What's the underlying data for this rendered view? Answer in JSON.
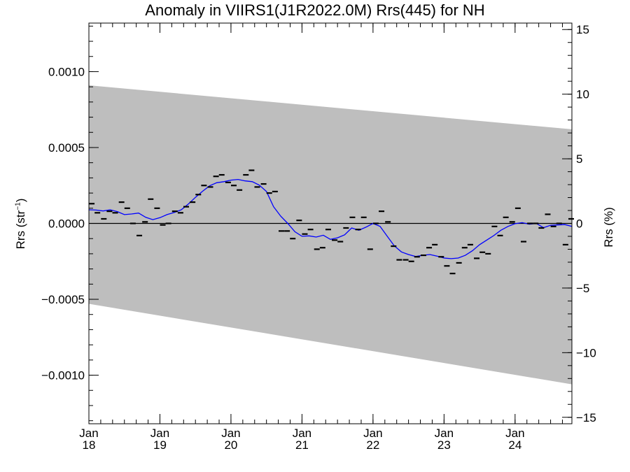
{
  "chart_data": {
    "type": "line",
    "title": "Anomaly in VIIRS1(J1R2022.0M) Rrs(445) for NH",
    "ylabel_left": {
      "main": "Rrs (str",
      "sup": "−1",
      "close": ")"
    },
    "ylabel_right": "Rrs (%)",
    "ylim": [
      -0.00132,
      0.00132
    ],
    "y2lim": [
      -15.5,
      15.5
    ],
    "xlim": [
      2018.0,
      2024.8
    ],
    "left_ticks": [
      {
        "value": 0.001,
        "label": "0.0010"
      },
      {
        "value": 0.0005,
        "label": "0.0005"
      },
      {
        "value": 0.0,
        "label": "0.0000"
      },
      {
        "value": -0.0005,
        "label": "−0.0005"
      },
      {
        "value": -0.001,
        "label": "−0.0010"
      }
    ],
    "right_ticks": [
      {
        "value": 15,
        "label": "15"
      },
      {
        "value": 10,
        "label": "10"
      },
      {
        "value": 5,
        "label": "5"
      },
      {
        "value": 0,
        "label": "0"
      },
      {
        "value": -5,
        "label": "−5"
      },
      {
        "value": -10,
        "label": "−10"
      },
      {
        "value": -15,
        "label": "−15"
      }
    ],
    "x_ticks": [
      {
        "value": 2018,
        "month": "Jan",
        "year": "18"
      },
      {
        "value": 2019,
        "month": "Jan",
        "year": "19"
      },
      {
        "value": 2020,
        "month": "Jan",
        "year": "20"
      },
      {
        "value": 2021,
        "month": "Jan",
        "year": "21"
      },
      {
        "value": 2022,
        "month": "Jan",
        "year": "22"
      },
      {
        "value": 2023,
        "month": "Jan",
        "year": "23"
      },
      {
        "value": 2024,
        "month": "Jan",
        "year": "24"
      }
    ],
    "band": {
      "upper": [
        [
          2018.0,
          0.00091
        ],
        [
          2024.8,
          0.00062
        ]
      ],
      "lower": [
        [
          2018.0,
          -0.00053
        ],
        [
          2024.8,
          -0.00106
        ]
      ],
      "color": "#bebebe"
    },
    "zero_line": 0.0,
    "monthly_series": {
      "color": "#000000",
      "points": [
        [
          2018.04,
          0.00013
        ],
        [
          2018.12,
          7e-05
        ],
        [
          2018.21,
          3e-05
        ],
        [
          2018.29,
          8e-05
        ],
        [
          2018.37,
          7e-05
        ],
        [
          2018.46,
          0.00014
        ],
        [
          2018.54,
          0.0001
        ],
        [
          2018.62,
          0.0
        ],
        [
          2018.71,
          -8e-05
        ],
        [
          2018.79,
          1e-05
        ],
        [
          2018.87,
          0.00016
        ],
        [
          2018.96,
          0.0001
        ],
        [
          2019.04,
          -1e-05
        ],
        [
          2019.12,
          0.0
        ],
        [
          2019.21,
          8e-05
        ],
        [
          2019.29,
          7e-05
        ],
        [
          2019.37,
          0.00011
        ],
        [
          2019.46,
          0.00014
        ],
        [
          2019.54,
          0.00019
        ],
        [
          2019.62,
          0.00025
        ],
        [
          2019.71,
          0.00024
        ],
        [
          2019.79,
          0.00031
        ],
        [
          2019.87,
          0.00032
        ],
        [
          2019.96,
          0.00027
        ],
        [
          2020.04,
          0.00025
        ],
        [
          2020.12,
          0.00022
        ],
        [
          2020.21,
          0.00032
        ],
        [
          2020.29,
          0.00035
        ],
        [
          2020.37,
          0.00024
        ],
        [
          2020.46,
          0.00026
        ],
        [
          2020.54,
          0.0002
        ],
        [
          2020.62,
          0.00021
        ],
        [
          2020.71,
          -5e-05
        ],
        [
          2020.79,
          -5e-05
        ],
        [
          2020.87,
          -0.0001
        ],
        [
          2020.96,
          2e-05
        ],
        [
          2021.04,
          -7e-05
        ],
        [
          2021.12,
          -4e-05
        ],
        [
          2021.21,
          -0.00017
        ],
        [
          2021.29,
          -0.00016
        ],
        [
          2021.37,
          -4e-05
        ],
        [
          2021.46,
          -0.00011
        ],
        [
          2021.54,
          -0.00012
        ],
        [
          2021.62,
          -3e-05
        ],
        [
          2021.71,
          4e-05
        ],
        [
          2021.79,
          -4e-05
        ],
        [
          2021.87,
          4e-05
        ],
        [
          2021.96,
          -0.00017
        ],
        [
          2022.04,
          0.0
        ],
        [
          2022.12,
          8e-05
        ],
        [
          2022.21,
          1e-05
        ],
        [
          2022.29,
          -0.00015
        ],
        [
          2022.37,
          -0.00024
        ],
        [
          2022.46,
          -0.00024
        ],
        [
          2022.54,
          -0.00025
        ],
        [
          2022.62,
          -0.00022
        ],
        [
          2022.71,
          -0.00021
        ],
        [
          2022.79,
          -0.00016
        ],
        [
          2022.87,
          -0.00014
        ],
        [
          2022.96,
          -0.00022
        ],
        [
          2023.04,
          -0.00028
        ],
        [
          2023.12,
          -0.00033
        ],
        [
          2023.21,
          -0.00026
        ],
        [
          2023.29,
          -0.00016
        ],
        [
          2023.37,
          -0.00014
        ],
        [
          2023.46,
          -0.00023
        ],
        [
          2023.54,
          -0.00019
        ],
        [
          2023.62,
          -0.0002
        ],
        [
          2023.71,
          -2e-05
        ],
        [
          2023.79,
          -8e-05
        ],
        [
          2023.87,
          4e-05
        ],
        [
          2023.96,
          1e-05
        ],
        [
          2024.04,
          0.0001
        ],
        [
          2024.12,
          -0.00012
        ],
        [
          2024.21,
          0.0
        ],
        [
          2024.29,
          0.0
        ],
        [
          2024.37,
          -3e-05
        ],
        [
          2024.46,
          6e-05
        ],
        [
          2024.54,
          -2e-05
        ],
        [
          2024.62,
          0.0
        ],
        [
          2024.71,
          -0.00014
        ],
        [
          2024.79,
          3e-05
        ]
      ]
    },
    "smoothed_series": {
      "color": "#0000ff",
      "points": [
        [
          2018.0,
          9e-05
        ],
        [
          2018.1,
          8.8e-05
        ],
        [
          2018.2,
          8.2e-05
        ],
        [
          2018.3,
          9e-05
        ],
        [
          2018.4,
          7.8e-05
        ],
        [
          2018.5,
          5.8e-05
        ],
        [
          2018.6,
          6.2e-05
        ],
        [
          2018.7,
          6.8e-05
        ],
        [
          2018.8,
          4e-05
        ],
        [
          2018.9,
          2.5e-05
        ],
        [
          2019.0,
          3.8e-05
        ],
        [
          2019.1,
          5.8e-05
        ],
        [
          2019.2,
          7.2e-05
        ],
        [
          2019.3,
          9e-05
        ],
        [
          2019.4,
          0.000128
        ],
        [
          2019.5,
          0.000172
        ],
        [
          2019.6,
          0.000212
        ],
        [
          2019.7,
          0.000248
        ],
        [
          2019.8,
          0.000268
        ],
        [
          2019.9,
          0.000275
        ],
        [
          2020.0,
          0.000285
        ],
        [
          2020.1,
          0.00029
        ],
        [
          2020.2,
          0.00028
        ],
        [
          2020.3,
          0.000275
        ],
        [
          2020.4,
          0.000252
        ],
        [
          2020.5,
          0.00021
        ],
        [
          2020.6,
          0.00011
        ],
        [
          2020.7,
          4.8e-05
        ],
        [
          2020.8,
          0.0
        ],
        [
          2020.9,
          -5.5e-05
        ],
        [
          2021.0,
          -8.5e-05
        ],
        [
          2021.1,
          -8.2e-05
        ],
        [
          2021.2,
          -9e-05
        ],
        [
          2021.3,
          -7.8e-05
        ],
        [
          2021.4,
          -0.000105
        ],
        [
          2021.5,
          -9.5e-05
        ],
        [
          2021.6,
          -7.5e-05
        ],
        [
          2021.7,
          -3e-05
        ],
        [
          2021.8,
          -4.5e-05
        ],
        [
          2021.9,
          -2.5e-05
        ],
        [
          2022.0,
          0.0
        ],
        [
          2022.1,
          -2e-05
        ],
        [
          2022.2,
          -8.5e-05
        ],
        [
          2022.3,
          -0.000148
        ],
        [
          2022.4,
          -0.000188
        ],
        [
          2022.5,
          -0.000205
        ],
        [
          2022.6,
          -0.000218
        ],
        [
          2022.7,
          -0.00021
        ],
        [
          2022.8,
          -0.000205
        ],
        [
          2022.9,
          -0.000215
        ],
        [
          2023.0,
          -0.000228
        ],
        [
          2023.1,
          -0.000232
        ],
        [
          2023.2,
          -0.000228
        ],
        [
          2023.3,
          -0.00021
        ],
        [
          2023.4,
          -0.00018
        ],
        [
          2023.5,
          -0.00014
        ],
        [
          2023.6,
          -0.00011
        ],
        [
          2023.7,
          -8e-05
        ],
        [
          2023.8,
          -4.5e-05
        ],
        [
          2023.9,
          -2e-05
        ],
        [
          2024.0,
          -2e-06
        ],
        [
          2024.1,
          5e-06
        ],
        [
          2024.2,
          -5e-06
        ],
        [
          2024.3,
          0.0
        ],
        [
          2024.4,
          -2.8e-05
        ],
        [
          2024.5,
          -1.2e-05
        ],
        [
          2024.6,
          -1e-05
        ],
        [
          2024.7,
          -8e-06
        ],
        [
          2024.8,
          -2e-05
        ]
      ]
    }
  }
}
